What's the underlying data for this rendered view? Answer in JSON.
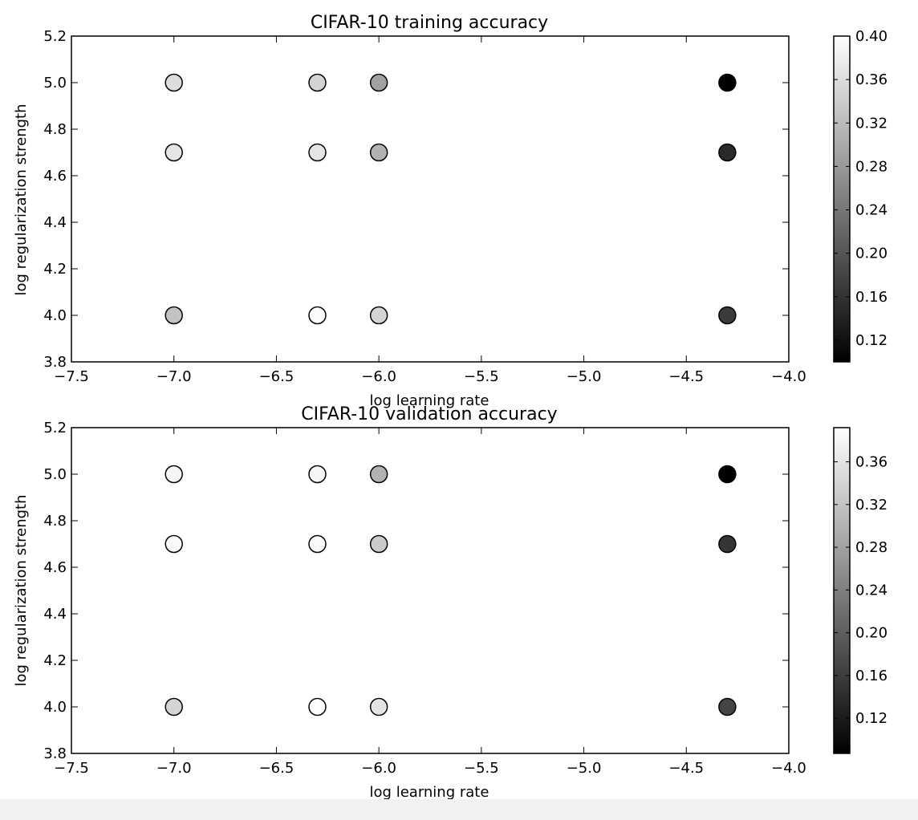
{
  "chart_data": [
    {
      "type": "scatter",
      "title": "CIFAR-10 training accuracy",
      "xlabel": "log learning rate",
      "ylabel": "log regularization strength",
      "xlim": [
        -7.5,
        -4.0
      ],
      "ylim": [
        3.8,
        5.2
      ],
      "xticks": [
        "−7.5",
        "−7.0",
        "−6.5",
        "−6.0",
        "−5.5",
        "−5.0",
        "−4.5",
        "−4.0"
      ],
      "yticks": [
        "3.8",
        "4.0",
        "4.2",
        "4.4",
        "4.6",
        "4.8",
        "5.0",
        "5.2"
      ],
      "colormap": "gray",
      "clim": [
        0.1,
        0.4
      ],
      "colorbar_ticks": [
        "0.12",
        "0.16",
        "0.20",
        "0.24",
        "0.28",
        "0.32",
        "0.36",
        "0.40"
      ],
      "grid": false,
      "points": [
        {
          "x": -7.0,
          "y": 5.0,
          "value": 0.36
        },
        {
          "x": -7.0,
          "y": 4.7,
          "value": 0.37
        },
        {
          "x": -7.0,
          "y": 4.0,
          "value": 0.33
        },
        {
          "x": -6.3,
          "y": 5.0,
          "value": 0.35
        },
        {
          "x": -6.3,
          "y": 4.7,
          "value": 0.37
        },
        {
          "x": -6.3,
          "y": 4.0,
          "value": 0.395
        },
        {
          "x": -6.0,
          "y": 5.0,
          "value": 0.29
        },
        {
          "x": -6.0,
          "y": 4.7,
          "value": 0.31
        },
        {
          "x": -6.0,
          "y": 4.0,
          "value": 0.35
        },
        {
          "x": -4.3,
          "y": 5.0,
          "value": 0.1
        },
        {
          "x": -4.3,
          "y": 4.7,
          "value": 0.15
        },
        {
          "x": -4.3,
          "y": 4.0,
          "value": 0.17
        }
      ]
    },
    {
      "type": "scatter",
      "title": "CIFAR-10 validation accuracy",
      "xlabel": "log learning rate",
      "ylabel": "log regularization strength",
      "xlim": [
        -7.5,
        -4.0
      ],
      "ylim": [
        3.8,
        5.2
      ],
      "xticks": [
        "−7.5",
        "−7.0",
        "−6.5",
        "−6.0",
        "−5.5",
        "−5.0",
        "−4.5",
        "−4.0"
      ],
      "yticks": [
        "3.8",
        "4.0",
        "4.2",
        "4.4",
        "4.6",
        "4.8",
        "5.0",
        "5.2"
      ],
      "colormap": "gray",
      "clim": [
        0.087,
        0.392
      ],
      "colorbar_ticks": [
        "0.12",
        "0.16",
        "0.20",
        "0.24",
        "0.28",
        "0.32",
        "0.36"
      ],
      "grid": false,
      "points": [
        {
          "x": -7.0,
          "y": 5.0,
          "value": 0.38
        },
        {
          "x": -7.0,
          "y": 4.7,
          "value": 0.385
        },
        {
          "x": -7.0,
          "y": 4.0,
          "value": 0.34
        },
        {
          "x": -6.3,
          "y": 5.0,
          "value": 0.38
        },
        {
          "x": -6.3,
          "y": 4.7,
          "value": 0.385
        },
        {
          "x": -6.3,
          "y": 4.0,
          "value": 0.39
        },
        {
          "x": -6.0,
          "y": 5.0,
          "value": 0.3
        },
        {
          "x": -6.0,
          "y": 4.7,
          "value": 0.33
        },
        {
          "x": -6.0,
          "y": 4.0,
          "value": 0.36
        },
        {
          "x": -4.3,
          "y": 5.0,
          "value": 0.087
        },
        {
          "x": -4.3,
          "y": 4.7,
          "value": 0.15
        },
        {
          "x": -4.3,
          "y": 4.0,
          "value": 0.17
        }
      ]
    }
  ]
}
